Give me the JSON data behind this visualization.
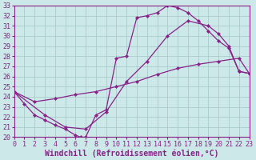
{
  "xlabel": "Windchill (Refroidissement éolien,°C)",
  "xlim": [
    0,
    23
  ],
  "ylim": [
    20,
    33
  ],
  "xticks": [
    0,
    1,
    2,
    3,
    4,
    5,
    6,
    7,
    8,
    9,
    10,
    11,
    12,
    13,
    14,
    15,
    16,
    17,
    18,
    19,
    20,
    21,
    22,
    23
  ],
  "yticks": [
    20,
    21,
    22,
    23,
    24,
    25,
    26,
    27,
    28,
    29,
    30,
    31,
    32,
    33
  ],
  "line_color": "#882288",
  "background_color": "#cce8e8",
  "grid_color": "#aacccc",
  "font_family": "monospace",
  "tick_fontsize": 6.0,
  "xlabel_fontsize": 7.0,
  "line1": [
    [
      0,
      24.5
    ],
    [
      1,
      23.3
    ],
    [
      2,
      22.2
    ],
    [
      3,
      21.7
    ],
    [
      4,
      21.2
    ],
    [
      5,
      20.8
    ],
    [
      6,
      20.2
    ],
    [
      6.5,
      20.0
    ],
    [
      7,
      20.0
    ],
    [
      8,
      22.2
    ],
    [
      9,
      22.7
    ],
    [
      10,
      27.8
    ],
    [
      11,
      28.0
    ],
    [
      12,
      31.8
    ],
    [
      13,
      32.0
    ],
    [
      14,
      32.3
    ],
    [
      15,
      33.0
    ],
    [
      16,
      32.8
    ],
    [
      17,
      32.3
    ],
    [
      18,
      31.5
    ],
    [
      19,
      30.5
    ],
    [
      20,
      29.5
    ],
    [
      21,
      28.8
    ],
    [
      22,
      26.5
    ],
    [
      23,
      26.3
    ]
  ],
  "line2": [
    [
      0,
      24.5
    ],
    [
      2,
      23.5
    ],
    [
      4,
      23.8
    ],
    [
      6,
      24.2
    ],
    [
      8,
      24.5
    ],
    [
      10,
      25.0
    ],
    [
      12,
      25.5
    ],
    [
      14,
      26.2
    ],
    [
      16,
      26.8
    ],
    [
      18,
      27.2
    ],
    [
      20,
      27.5
    ],
    [
      22,
      27.8
    ],
    [
      23,
      26.3
    ]
  ],
  "line3": [
    [
      0,
      24.5
    ],
    [
      3,
      22.2
    ],
    [
      5,
      21.0
    ],
    [
      7,
      20.8
    ],
    [
      9,
      22.5
    ],
    [
      11,
      25.5
    ],
    [
      13,
      27.5
    ],
    [
      15,
      30.0
    ],
    [
      17,
      31.5
    ],
    [
      19,
      31.0
    ],
    [
      20,
      30.2
    ],
    [
      21,
      29.0
    ],
    [
      22,
      26.5
    ],
    [
      23,
      26.3
    ]
  ]
}
